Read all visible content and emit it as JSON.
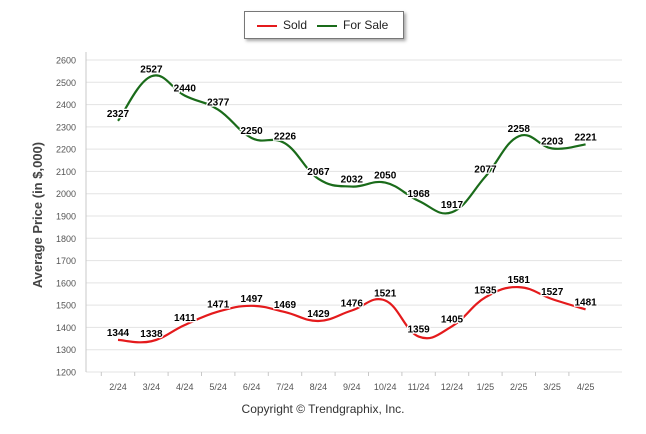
{
  "legend": {
    "sold_label": "Sold",
    "for_sale_label": "For Sale"
  },
  "footer": {
    "copyright": "Copyright © Trendgraphix, Inc."
  },
  "colors": {
    "sold": "#e41a1c",
    "for_sale": "#1a6b1a"
  },
  "chart_data": {
    "type": "line",
    "categories": [
      "2/24",
      "3/24",
      "4/24",
      "5/24",
      "6/24",
      "7/24",
      "8/24",
      "9/24",
      "10/24",
      "11/24",
      "12/24",
      "1/25",
      "2/25",
      "3/25",
      "4/25"
    ],
    "series": [
      {
        "name": "Sold",
        "values": [
          1344,
          1338,
          1411,
          1471,
          1497,
          1469,
          1429,
          1476,
          1521,
          1359,
          1405,
          1535,
          1581,
          1527,
          1481
        ]
      },
      {
        "name": "For Sale",
        "values": [
          2327,
          2527,
          2440,
          2377,
          2250,
          2226,
          2067,
          2032,
          2050,
          1968,
          1917,
          2077,
          2258,
          2203,
          2221
        ]
      }
    ],
    "xlabel": "",
    "ylabel": "Average Price (in $,000)",
    "ylim": [
      1200,
      2600
    ],
    "yticks": [
      1200,
      1300,
      1400,
      1500,
      1600,
      1700,
      1800,
      1900,
      2000,
      2100,
      2200,
      2300,
      2400,
      2500,
      2600
    ],
    "grid": true,
    "legend_position": "top-center"
  }
}
